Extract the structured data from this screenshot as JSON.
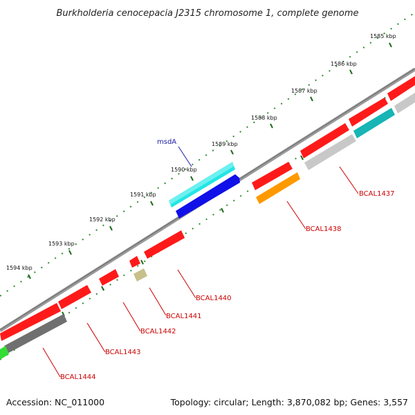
{
  "title": "Burkholderia cenocepacia J2315 chromosome 1, complete genome",
  "footer": {
    "accession": "Accession: NC_011000",
    "summary": "Topology: circular; Length: 3,870,082 bp; Genes: 3,557"
  },
  "ticks": [
    {
      "label": "1585 kbp"
    },
    {
      "label": "1586 kbp"
    },
    {
      "label": "1587 kbp"
    },
    {
      "label": "1588 kbp"
    },
    {
      "label": "1589 kbp"
    },
    {
      "label": "1590 kbp"
    },
    {
      "label": "1591 kbp"
    },
    {
      "label": "1592 kbp"
    },
    {
      "label": "1593 kbp"
    },
    {
      "label": "1594 kbp"
    }
  ],
  "gene_labels": [
    {
      "name": "msdA",
      "color": "#1a1aa8"
    },
    {
      "name": "BCAL1437",
      "color": "#cc0000"
    },
    {
      "name": "BCAL1438",
      "color": "#cc0000"
    },
    {
      "name": "BCAL1440",
      "color": "#cc0000"
    },
    {
      "name": "BCAL1441",
      "color": "#cc0000"
    },
    {
      "name": "BCAL1442",
      "color": "#cc0000"
    },
    {
      "name": "BCAL1443",
      "color": "#cc0000"
    },
    {
      "name": "BCAL1444",
      "color": "#cc0000"
    }
  ],
  "colors": {
    "backbone": "#8a8a8a",
    "tick_major": "#1f6b1f",
    "tick_minor": "#2e8b2e",
    "cds": "#ff1a1a",
    "cyan": "#22e5e5",
    "blue": "#1010e8",
    "orange": "#ff9900",
    "gray": "#c8c8c8",
    "dark_gray": "#707070",
    "teal": "#17b5b5",
    "khaki": "#c8c08a",
    "green": "#33dd33"
  }
}
